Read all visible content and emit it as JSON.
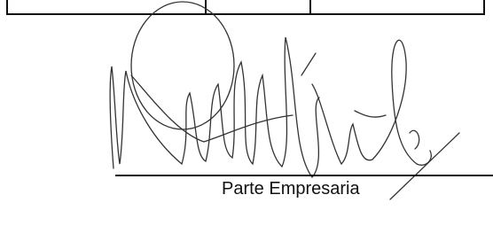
{
  "signature_block": {
    "label": "Parte Empresaria"
  }
}
